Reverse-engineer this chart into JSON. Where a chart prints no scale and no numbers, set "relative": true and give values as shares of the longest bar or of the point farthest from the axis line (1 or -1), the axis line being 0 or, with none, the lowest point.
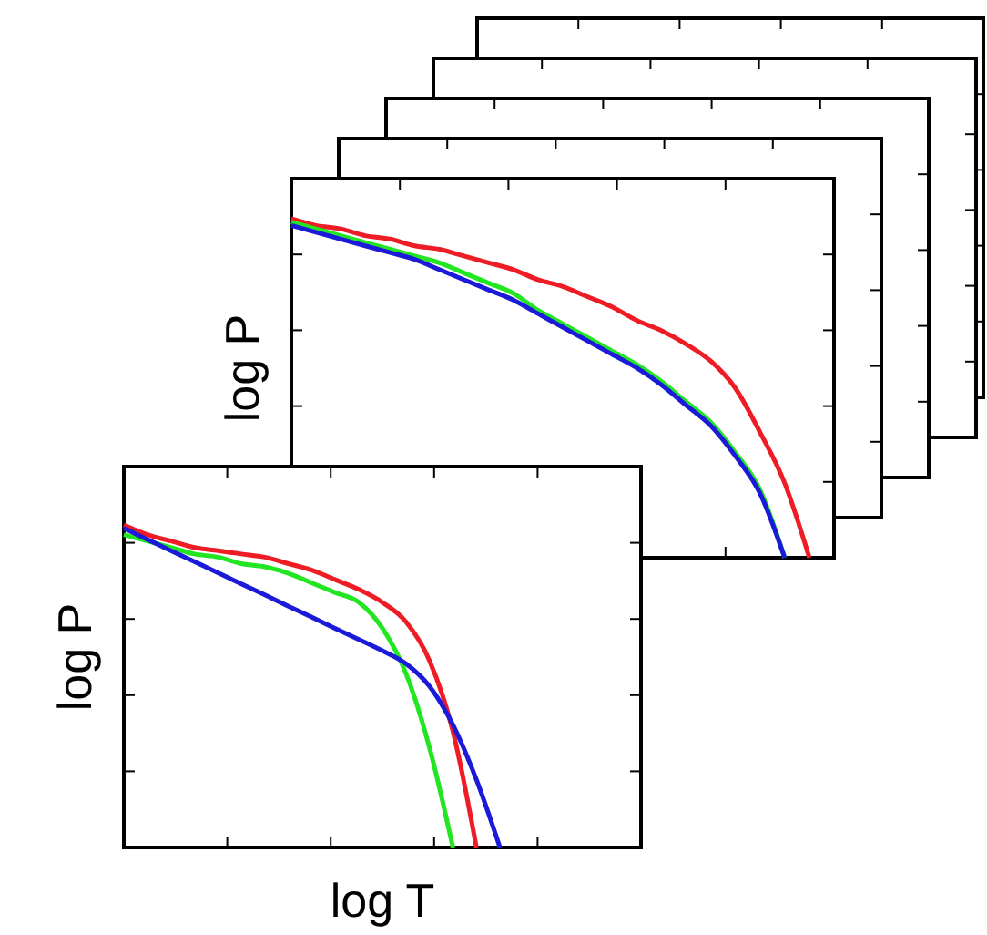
{
  "chart_data": [
    {
      "type": "line",
      "ylabel": "log P",
      "relative": true,
      "tick_labels": false,
      "categories": [
        null,
        null,
        null,
        null,
        null,
        null,
        null,
        null,
        null,
        null,
        null,
        null,
        null,
        null,
        null,
        null,
        null,
        null,
        null,
        null,
        null,
        null,
        null
      ],
      "series": [
        {
          "color": "#ee1c25",
          "values": [
            1.0,
            0.98,
            0.97,
            0.95,
            0.94,
            0.92,
            0.91,
            0.89,
            0.87,
            0.85,
            0.82,
            0.8,
            0.77,
            0.74,
            0.7,
            0.67,
            0.63,
            0.58,
            0.5,
            0.37,
            0.22,
            0,
            null
          ]
        },
        {
          "color": "#22e622",
          "values": [
            0.99,
            0.97,
            0.95,
            0.93,
            0.91,
            0.89,
            0.87,
            0.84,
            0.81,
            0.78,
            0.73,
            0.69,
            0.65,
            0.61,
            0.57,
            0.52,
            0.46,
            0.4,
            0.31,
            0.2,
            0,
            null,
            null
          ]
        },
        {
          "color": "#1a1ad8",
          "values": [
            0.98,
            0.96,
            0.94,
            0.92,
            0.9,
            0.88,
            0.85,
            0.82,
            0.79,
            0.76,
            0.72,
            0.68,
            0.64,
            0.6,
            0.56,
            0.51,
            0.45,
            0.39,
            0.3,
            0.19,
            0,
            null,
            null
          ]
        }
      ]
    },
    {
      "type": "line",
      "xlabel": "log T",
      "ylabel": "log P",
      "relative": true,
      "tick_labels": false,
      "categories": [
        null,
        null,
        null,
        null,
        null,
        null,
        null,
        null,
        null,
        null,
        null,
        null,
        null,
        null,
        null,
        null,
        null,
        null,
        null,
        null,
        null,
        null,
        null
      ],
      "series": [
        {
          "color": "#ee1c25",
          "values": [
            1,
            0.97,
            0.95,
            0.93,
            0.92,
            0.91,
            0.9,
            0.88,
            0.86,
            0.83,
            0.8,
            0.76,
            0.7,
            0.58,
            0.36,
            0,
            null,
            null,
            null,
            null,
            null,
            null,
            null
          ]
        },
        {
          "color": "#22e622",
          "values": [
            0.97,
            0.95,
            0.93,
            0.91,
            0.9,
            0.88,
            0.87,
            0.85,
            0.82,
            0.79,
            0.76,
            0.68,
            0.54,
            0.31,
            0,
            null,
            null,
            null,
            null,
            null,
            null,
            null,
            null
          ]
        },
        {
          "color": "#1a1ad8",
          "values": [
            0.99,
            0.955,
            0.92,
            0.886,
            0.852,
            0.817,
            0.783,
            0.748,
            0.714,
            0.679,
            0.645,
            0.61,
            0.57,
            0.5,
            0.38,
            0.21,
            0,
            null,
            null,
            null,
            null,
            null,
            null
          ]
        }
      ]
    }
  ]
}
